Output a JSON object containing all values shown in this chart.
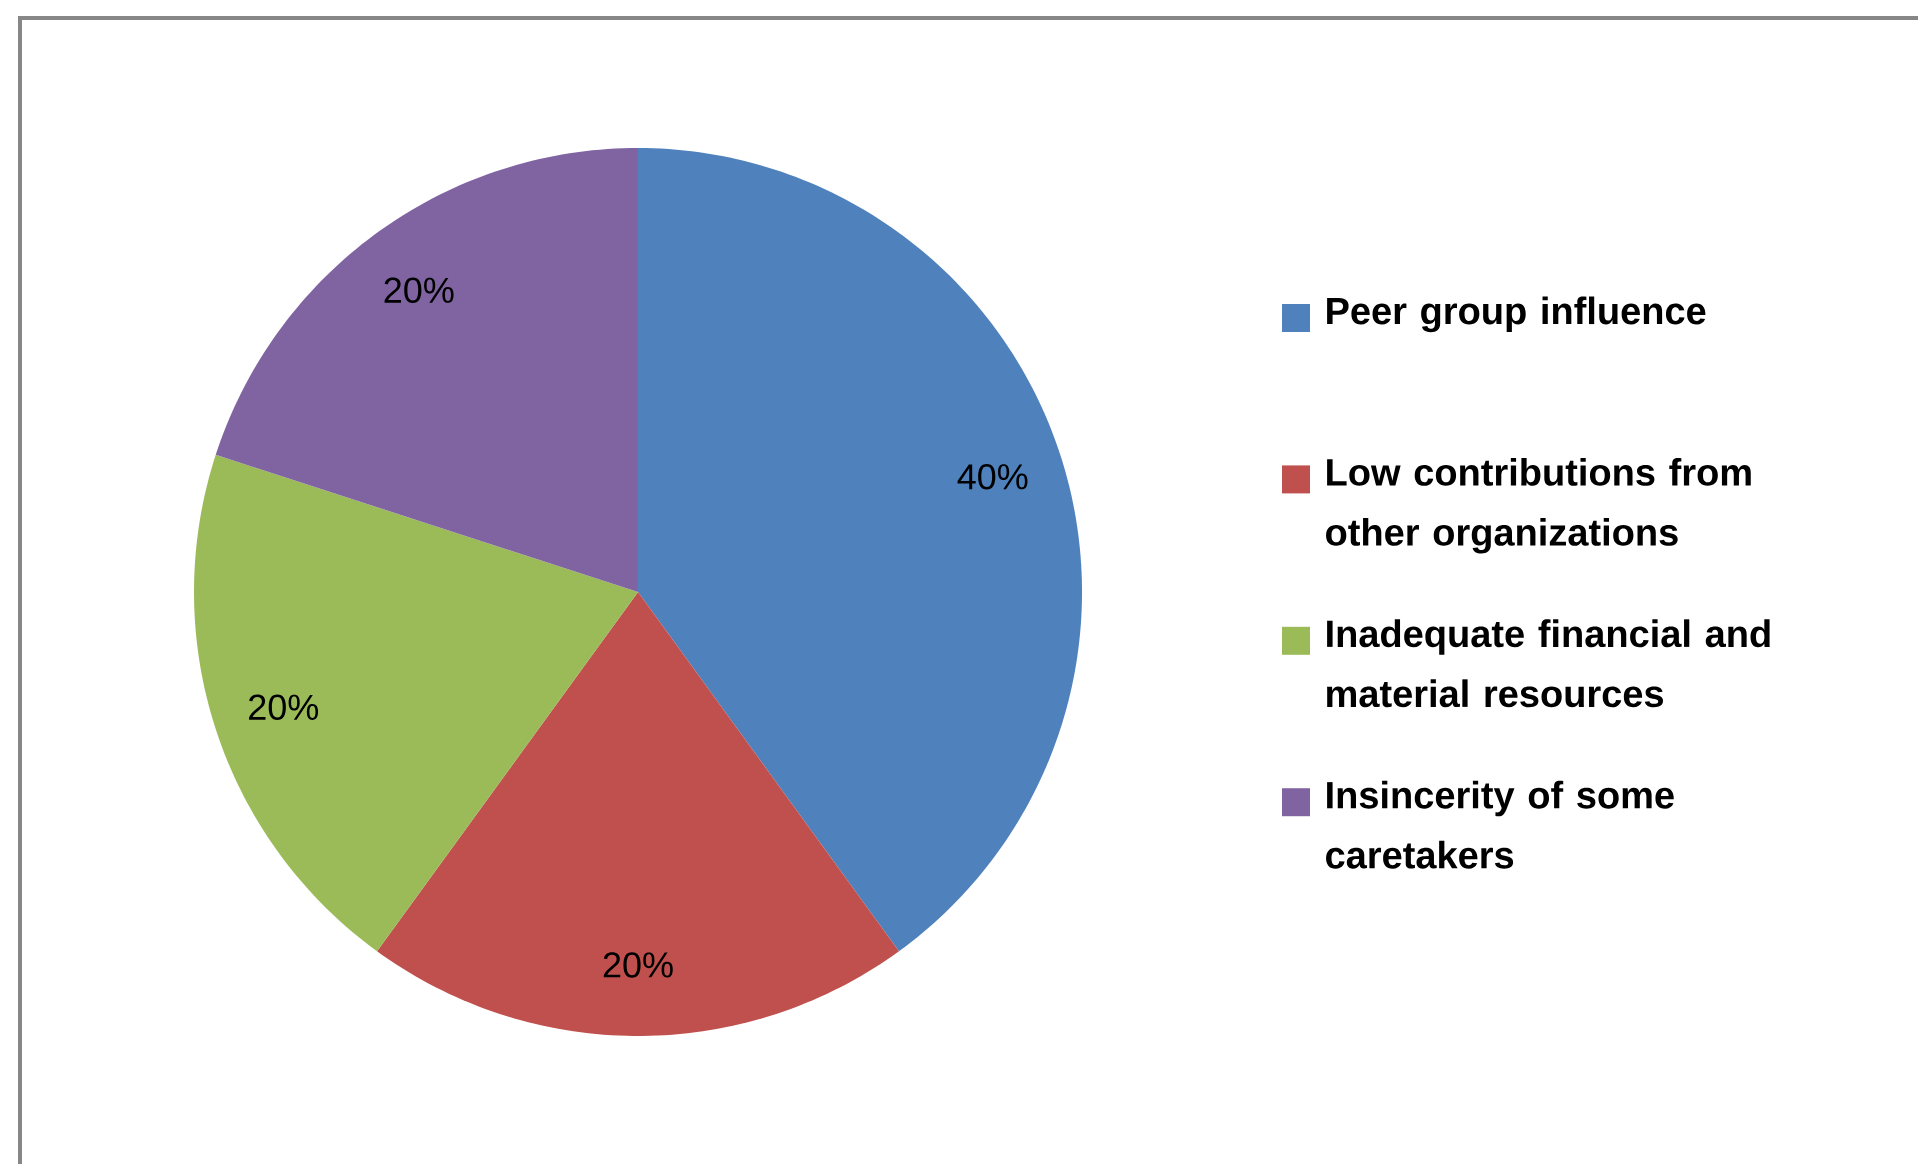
{
  "chart_data": {
    "type": "pie",
    "categories": [
      "Peer group influence",
      "Low contributions from other organizations",
      "Inadequate financial and material resources",
      "Insincerity of some caretakers"
    ],
    "values": [
      40,
      20,
      20,
      20
    ],
    "colors": [
      "#4f81bd",
      "#c0504d",
      "#9bbb59",
      "#8064a2"
    ],
    "value_labels": [
      "40%",
      "20%",
      "20%",
      "20%"
    ],
    "legend": "right"
  }
}
